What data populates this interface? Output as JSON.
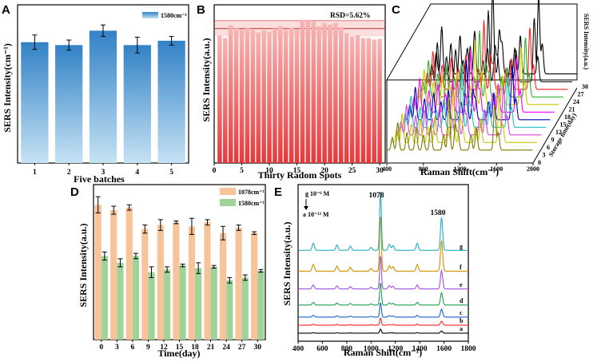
{
  "chart_data": [
    {
      "panel": "A",
      "type": "bar",
      "xlabel": "Five batches",
      "ylabel": "SERS Intensity(cm⁻¹)",
      "categories": [
        "1",
        "2",
        "3",
        "4",
        "5"
      ],
      "series": [
        {
          "name": "1580cm⁻¹",
          "values": [
            0.84,
            0.82,
            0.92,
            0.82,
            0.85
          ],
          "errors": [
            0.05,
            0.035,
            0.04,
            0.055,
            0.03
          ],
          "color": "#3b8ed0"
        }
      ],
      "ylim": [
        0,
        1.1
      ],
      "legend": "top-right"
    },
    {
      "panel": "B",
      "type": "bar",
      "xlabel": "Thirty Radom  Spots",
      "ylabel": "SERS Intensity(a.u.)",
      "annotation": "RSD=5.62%",
      "x_ticks": [
        "0",
        "5",
        "10",
        "15",
        "20",
        "25",
        "30"
      ],
      "values": [
        0.805,
        0.79,
        0.87,
        0.855,
        0.845,
        0.855,
        0.84,
        0.825,
        0.84,
        0.83,
        0.85,
        0.865,
        0.84,
        0.855,
        0.845,
        0.905,
        0.905,
        0.895,
        0.865,
        0.885,
        0.875,
        0.885,
        0.86,
        0.82,
        0.8,
        0.81,
        0.79,
        0.79,
        0.78,
        0.785
      ],
      "mean": 0.85,
      "band": [
        0.8,
        0.9
      ],
      "xlim": [
        0,
        31
      ],
      "ylim": [
        0,
        1.0
      ],
      "color": "#ee4a4a"
    },
    {
      "panel": "C",
      "type": "line",
      "xlabel": "Raman Shift(cm⁻¹)",
      "ylabel": "SERS Intensity(a.u.)",
      "zlabel": "Storage time(day)",
      "x_ticks": [
        "400",
        "800",
        "1200",
        "1600",
        "2000"
      ],
      "z_ticks": [
        "0",
        "3",
        "6",
        "9",
        "12",
        "15",
        "18",
        "21",
        "24",
        "27",
        "30"
      ],
      "colors": [
        "#7a7a00",
        "#c8c800",
        "#e040e0",
        "#20c0c0",
        "#0000c0",
        "#ff00ff",
        "#c8c800",
        "#30b030",
        "#ff2020",
        "#101010",
        "#000000"
      ],
      "peaks": [
        {
          "x": 460,
          "h": 0.25
        },
        {
          "x": 520,
          "h": 0.55
        },
        {
          "x": 620,
          "h": 0.35
        },
        {
          "x": 720,
          "h": 0.45
        },
        {
          "x": 800,
          "h": 0.3
        },
        {
          "x": 880,
          "h": 0.5
        },
        {
          "x": 1020,
          "h": 0.3
        },
        {
          "x": 1078,
          "h": 1.0
        },
        {
          "x": 1150,
          "h": 0.5
        },
        {
          "x": 1180,
          "h": 0.35
        },
        {
          "x": 1320,
          "h": 0.3
        },
        {
          "x": 1380,
          "h": 0.45
        },
        {
          "x": 1580,
          "h": 0.9
        },
        {
          "x": 1620,
          "h": 0.35
        }
      ],
      "xlim": [
        400,
        2000
      ]
    },
    {
      "panel": "D",
      "type": "bar",
      "xlabel": "Time(day)",
      "ylabel": "SERS Intensity(a.u.)",
      "categories": [
        "0",
        "3",
        "6",
        "9",
        "12",
        "15",
        "18",
        "21",
        "24",
        "27",
        "30"
      ],
      "series": [
        {
          "name": "1078cm⁻¹",
          "values": [
            1.0,
            0.96,
            0.98,
            0.82,
            0.85,
            0.87,
            0.84,
            0.87,
            0.79,
            0.83,
            0.79
          ],
          "errors": [
            0.06,
            0.03,
            0.02,
            0.03,
            0.04,
            0.01,
            0.06,
            0.02,
            0.05,
            0.02,
            0.01
          ],
          "color": "#f7c49a"
        },
        {
          "name": "1580cm⁻¹",
          "values": [
            0.62,
            0.57,
            0.62,
            0.5,
            0.52,
            0.55,
            0.53,
            0.54,
            0.44,
            0.46,
            0.51
          ],
          "errors": [
            0.03,
            0.03,
            0.02,
            0.04,
            0.02,
            0.01,
            0.04,
            0.01,
            0.02,
            0.02,
            0.01
          ],
          "color": "#9fd39a"
        }
      ],
      "ylim": [
        0,
        1.15
      ],
      "legend": "top-right"
    },
    {
      "panel": "E",
      "type": "line",
      "xlabel": "Raman Shift(cm⁻¹)",
      "ylabel": "SERS Intensity(a.u.)",
      "x_ticks": [
        "400",
        "600",
        "800",
        "1000",
        "1200",
        "1400",
        "1600",
        "1800"
      ],
      "xlim": [
        400,
        1800
      ],
      "annotations": {
        "g_label": "g 10⁻⁶ M",
        "a_label": "a 10⁻¹² M",
        "peak1": "1078",
        "peak2": "1580"
      },
      "series": [
        {
          "name": "a",
          "color": "#000000",
          "scale": 0.05
        },
        {
          "name": "b",
          "color": "#ff2020",
          "scale": 0.12
        },
        {
          "name": "c",
          "color": "#1f5fd0",
          "scale": 0.35
        },
        {
          "name": "d",
          "color": "#20a050",
          "scale": 0.5
        },
        {
          "name": "e",
          "color": "#a050e0",
          "scale": 0.65
        },
        {
          "name": "f",
          "color": "#d09000",
          "scale": 0.85
        },
        {
          "name": "g",
          "color": "#20b0c0",
          "scale": 1.0
        }
      ],
      "peaks": [
        {
          "x": 525,
          "h": 0.12
        },
        {
          "x": 720,
          "h": 0.09
        },
        {
          "x": 830,
          "h": 0.07
        },
        {
          "x": 1000,
          "h": 0.05
        },
        {
          "x": 1078,
          "h": 1.0
        },
        {
          "x": 1150,
          "h": 0.1
        },
        {
          "x": 1180,
          "h": 0.08
        },
        {
          "x": 1380,
          "h": 0.12
        },
        {
          "x": 1580,
          "h": 0.55
        }
      ]
    }
  ],
  "panel_labels": {
    "a": "A",
    "b": "B",
    "c": "C",
    "d": "D",
    "e": "E"
  }
}
